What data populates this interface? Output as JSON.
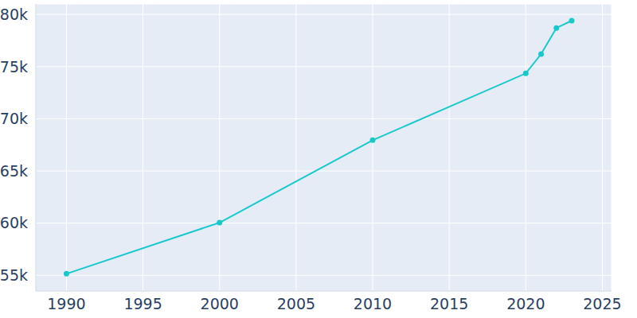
{
  "chart_data": {
    "type": "line",
    "x": [
      1990,
      2000,
      2010,
      2020,
      2021,
      2022,
      2023
    ],
    "values": [
      55150,
      60050,
      67950,
      74350,
      76200,
      78700,
      79400
    ],
    "color": "#17c9cb",
    "marker": "circle",
    "xlim": [
      1988,
      2025.6
    ],
    "xticks": [
      1990,
      1995,
      2000,
      2005,
      2010,
      2015,
      2020,
      2025
    ],
    "ylim": [
      53500,
      81000
    ],
    "yticks": [
      {
        "value": 55000,
        "label": "55k"
      },
      {
        "value": 60000,
        "label": "60k"
      },
      {
        "value": 65000,
        "label": "65k"
      },
      {
        "value": 70000,
        "label": "70k"
      },
      {
        "value": 75000,
        "label": "75k"
      },
      {
        "value": 80000,
        "label": "80k"
      }
    ],
    "grid": true
  }
}
